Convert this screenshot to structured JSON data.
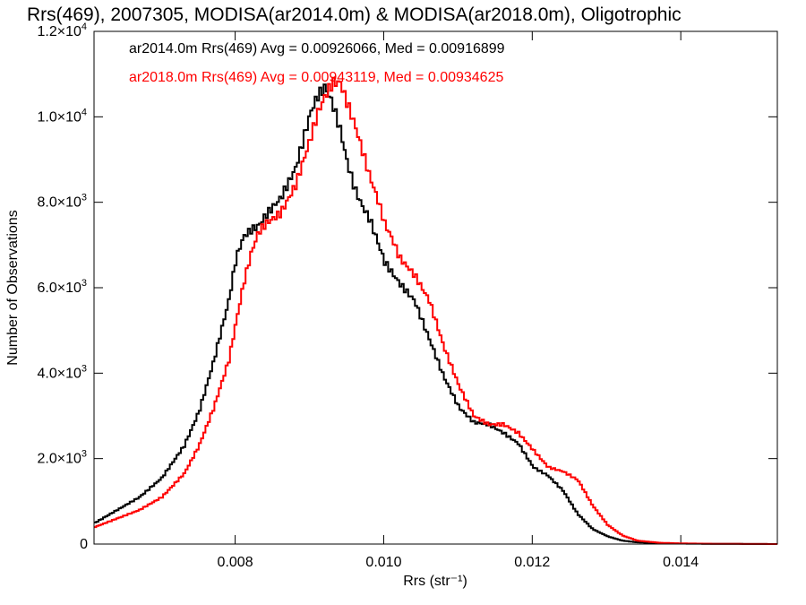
{
  "chart_data": {
    "type": "line",
    "title": "Rrs(469), 2007305, MODISA(ar2014.0m) & MODISA(ar2018.0m), Oligotrophic",
    "xlabel": "Rrs (str⁻¹)",
    "ylabel": "Number of Observations",
    "xlim": [
      0.0061,
      0.0153
    ],
    "ylim": [
      0,
      12000
    ],
    "x_ticks": [
      {
        "value": 0.008,
        "label": "0.008"
      },
      {
        "value": 0.01,
        "label": "0.010"
      },
      {
        "value": 0.012,
        "label": "0.012"
      },
      {
        "value": 0.014,
        "label": "0.014"
      }
    ],
    "y_ticks": [
      {
        "value": 0,
        "mant": "0",
        "exp": ""
      },
      {
        "value": 2000,
        "mant": "2.0×10",
        "exp": "3"
      },
      {
        "value": 4000,
        "mant": "4.0×10",
        "exp": "3"
      },
      {
        "value": 6000,
        "mant": "6.0×10",
        "exp": "3"
      },
      {
        "value": 8000,
        "mant": "8.0×10",
        "exp": "3"
      },
      {
        "value": 10000,
        "mant": "1.0×10",
        "exp": "4"
      },
      {
        "value": 12000,
        "mant": "1.2×10",
        "exp": "4"
      }
    ],
    "grid": false,
    "legend_position": "top-left",
    "series": [
      {
        "name": "ar2014.0m",
        "color": "#000000",
        "stats_text": "ar2014.0m Rrs(469) Avg = 0.00926066, Med = 0.00916899",
        "x": [
          0.0061,
          0.0064,
          0.0067,
          0.007,
          0.0073,
          0.0075,
          0.0077,
          0.0079,
          0.008,
          0.0081,
          0.0082,
          0.0083,
          0.0084,
          0.0086,
          0.0088,
          0.009,
          0.0091,
          0.0092,
          0.0093,
          0.0094,
          0.0095,
          0.0096,
          0.0097,
          0.0098,
          0.0099,
          0.01,
          0.0101,
          0.0102,
          0.0104,
          0.0106,
          0.0108,
          0.011,
          0.0112,
          0.0114,
          0.0116,
          0.0118,
          0.012,
          0.0122,
          0.0124,
          0.0126,
          0.0128,
          0.013,
          0.0132,
          0.0134,
          0.0137,
          0.014,
          0.0145,
          0.0153
        ],
        "y": [
          500,
          800,
          1100,
          1550,
          2300,
          3100,
          4300,
          5700,
          6700,
          7200,
          7350,
          7450,
          7700,
          8100,
          8800,
          10100,
          10500,
          10700,
          10300,
          9700,
          8900,
          8300,
          7900,
          7600,
          7100,
          6600,
          6350,
          6100,
          5700,
          4800,
          3900,
          3200,
          2850,
          2800,
          2600,
          2350,
          1800,
          1600,
          1250,
          700,
          350,
          180,
          80,
          40,
          20,
          10,
          5,
          0
        ]
      },
      {
        "name": "ar2018.0m",
        "color": "#ff0000",
        "stats_text": "ar2018.0m Rrs(469) Avg = 0.00943119, Med = 0.00934625",
        "x": [
          0.0061,
          0.0064,
          0.0067,
          0.007,
          0.0073,
          0.0075,
          0.0077,
          0.0079,
          0.008,
          0.0081,
          0.0082,
          0.0083,
          0.0084,
          0.0086,
          0.0088,
          0.009,
          0.0091,
          0.0092,
          0.0093,
          0.0094,
          0.0095,
          0.0096,
          0.0097,
          0.0098,
          0.0099,
          0.01,
          0.0101,
          0.0102,
          0.0104,
          0.0106,
          0.0108,
          0.011,
          0.0112,
          0.0114,
          0.0116,
          0.0118,
          0.012,
          0.0122,
          0.0124,
          0.0126,
          0.0128,
          0.013,
          0.0132,
          0.0134,
          0.0137,
          0.014,
          0.0145,
          0.0153
        ],
        "y": [
          400,
          600,
          800,
          1100,
          1650,
          2300,
          3200,
          4300,
          5200,
          6100,
          6800,
          7300,
          7500,
          7750,
          8400,
          9500,
          10100,
          10500,
          10800,
          10800,
          10300,
          9800,
          9200,
          8600,
          8100,
          7500,
          7150,
          6700,
          6300,
          5700,
          4600,
          3700,
          3000,
          2800,
          2800,
          2600,
          2200,
          1800,
          1700,
          1500,
          900,
          450,
          200,
          80,
          30,
          15,
          5,
          0
        ]
      }
    ]
  }
}
